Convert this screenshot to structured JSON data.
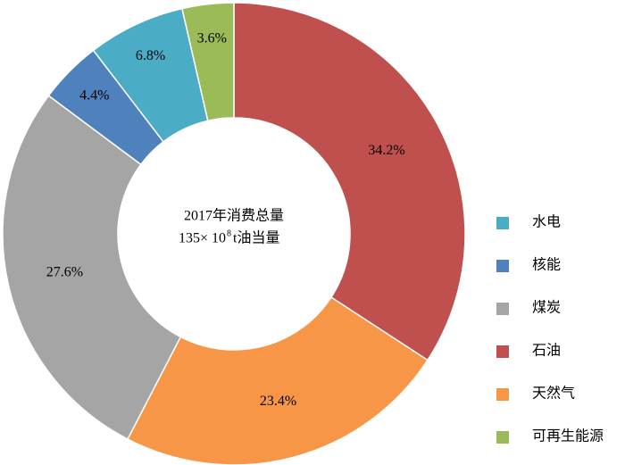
{
  "chart_data": {
    "type": "donut",
    "center_label": {
      "line1": "2017年消费总量",
      "line2_base": "135× 10",
      "line2_sup": "8",
      "line2_unit": "t油当量"
    },
    "categories": [
      "水电",
      "核能",
      "煤炭",
      "石油",
      "天然气",
      "可再生能源"
    ],
    "values": [
      6.8,
      4.4,
      27.6,
      34.2,
      23.4,
      3.6
    ],
    "value_labels": [
      "6.8%",
      "4.4%",
      "27.6%",
      "34.2%",
      "23.4%",
      "3.6%"
    ],
    "colors": [
      "#4bacc6",
      "#4f81bd",
      "#a5a5a5",
      "#c0504d",
      "#f79646",
      "#9bbb59"
    ],
    "legend": "right"
  }
}
